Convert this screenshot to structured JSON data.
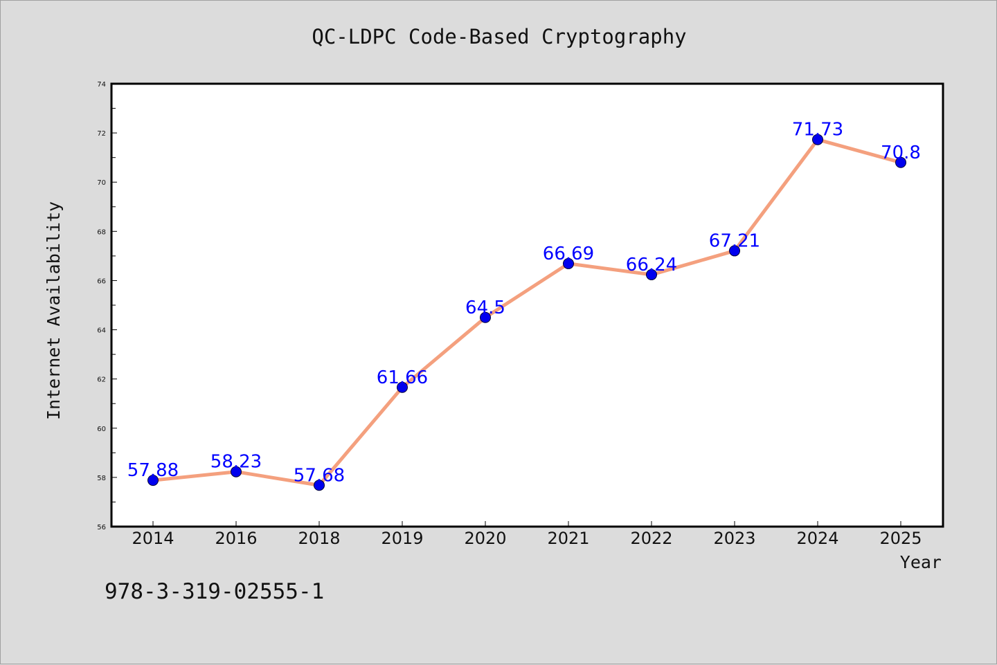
{
  "chart_data": {
    "type": "line",
    "title": "QC-LDPC Code-Based Cryptography",
    "xlabel": "Year",
    "ylabel": "Internet Availability",
    "categories": [
      "2014",
      "2016",
      "2018",
      "2019",
      "2020",
      "2021",
      "2022",
      "2023",
      "2024",
      "2025"
    ],
    "series": [
      {
        "values": [
          57.88,
          58.23,
          57.68,
          61.66,
          64.5,
          66.69,
          66.24,
          67.21,
          71.73,
          70.8
        ],
        "data_labels": [
          "57.88",
          "58.23",
          "57.68",
          "61.66",
          "64.5",
          "66.69",
          "66.24",
          "67.21",
          "71.73",
          "70.8"
        ]
      }
    ],
    "ylim": [
      56,
      74
    ],
    "yticks": [
      56,
      58,
      60,
      62,
      64,
      66,
      68,
      70,
      72,
      74
    ],
    "grid": false,
    "legend": "none",
    "colors": {
      "line": "#f4a07e",
      "marker": "#0000ee",
      "data_label": "#0000ff",
      "plot_background": "#ffffff",
      "figure_background": "#dcdcdc"
    }
  },
  "footer": {
    "text": "978-3-319-02555-1"
  }
}
